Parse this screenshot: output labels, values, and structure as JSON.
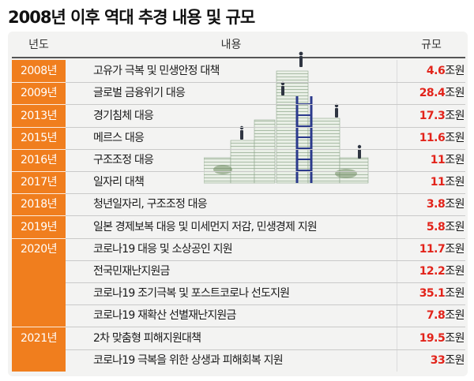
{
  "title": "2008년 이후 역대 추경 내용 및 규모",
  "headers": {
    "year": "년도",
    "content": "내용",
    "scale": "규모"
  },
  "unit": "조원",
  "rows": [
    {
      "year": "2008년",
      "content": "고유가 극복 및 민생안정 대책",
      "amount": "4.6"
    },
    {
      "year": "2009년",
      "content": "글로벌 금융위기 대응",
      "amount": "28.4"
    },
    {
      "year": "2013년",
      "content": "경기침체 대응",
      "amount": "17.3"
    },
    {
      "year": "2015년",
      "content": "메르스 대응",
      "amount": "11.6"
    },
    {
      "year": "2016년",
      "content": "구조조정 대응",
      "amount": "11"
    },
    {
      "year": "2017년",
      "content": "일자리 대책",
      "amount": "11"
    },
    {
      "year": "2018년",
      "content": "청년일자리, 구조조정 대응",
      "amount": "3.8"
    },
    {
      "year": "2019년",
      "content": "일본 경제보복 대응 및 미세먼지 저감, 민생경제 지원",
      "amount": "5.8"
    },
    {
      "year": "2020년",
      "content": "코로나19 대응 및 소상공인 지원",
      "amount": "11.7"
    },
    {
      "year": "",
      "content": "전국민재난지원금",
      "amount": "12.2"
    },
    {
      "year": "",
      "content": "코로나19 조기극복 및 포스트코로나 선도지원",
      "amount": "35.1"
    },
    {
      "year": "",
      "content": "코로나19 재확산 선별재난지원금",
      "amount": "7.8"
    },
    {
      "year": "2021년",
      "content": "2차 맞춤형 피해지원대책",
      "amount": "19.5"
    },
    {
      "year": "",
      "content": "코로나19 극복을 위한 상생과 피해회복 지원",
      "amount": "33"
    }
  ],
  "chart_data": {
    "type": "table",
    "title": "2008년 이후 역대 추경 내용 및 규모",
    "columns": [
      "년도",
      "내용",
      "규모"
    ],
    "rows": [
      [
        "2008년",
        "고유가 극복 및 민생안정 대책",
        "4.6조원"
      ],
      [
        "2009년",
        "글로벌 금융위기 대응",
        "28.4조원"
      ],
      [
        "2013년",
        "경기침체 대응",
        "17.3조원"
      ],
      [
        "2015년",
        "메르스 대응",
        "11.6조원"
      ],
      [
        "2016년",
        "구조조정 대응",
        "11조원"
      ],
      [
        "2017년",
        "일자리 대책",
        "11조원"
      ],
      [
        "2018년",
        "청년일자리, 구조조정 대응",
        "3.8조원"
      ],
      [
        "2019년",
        "일본 경제보복 대응 및 미세먼지 저감, 민생경제 지원",
        "5.8조원"
      ],
      [
        "2020년",
        "코로나19 대응 및 소상공인 지원",
        "11.7조원"
      ],
      [
        "2020년",
        "전국민재난지원금",
        "12.2조원"
      ],
      [
        "2020년",
        "코로나19 조기극복 및 포스트코로나 선도지원",
        "35.1조원"
      ],
      [
        "2020년",
        "코로나19 재확산 선별재난지원금",
        "7.8조원"
      ],
      [
        "2021년",
        "2차 맞춤형 피해지원대책",
        "19.5조원"
      ],
      [
        "2021년",
        "코로나19 극복을 위한 상생과 피해회복 지원",
        "33조원"
      ]
    ]
  },
  "colors": {
    "year_band": "#f07e1e",
    "amount": "#e2231a",
    "background": "#f3f3f2"
  },
  "illustration": {
    "icon": "money-stack-ladder-icon"
  }
}
